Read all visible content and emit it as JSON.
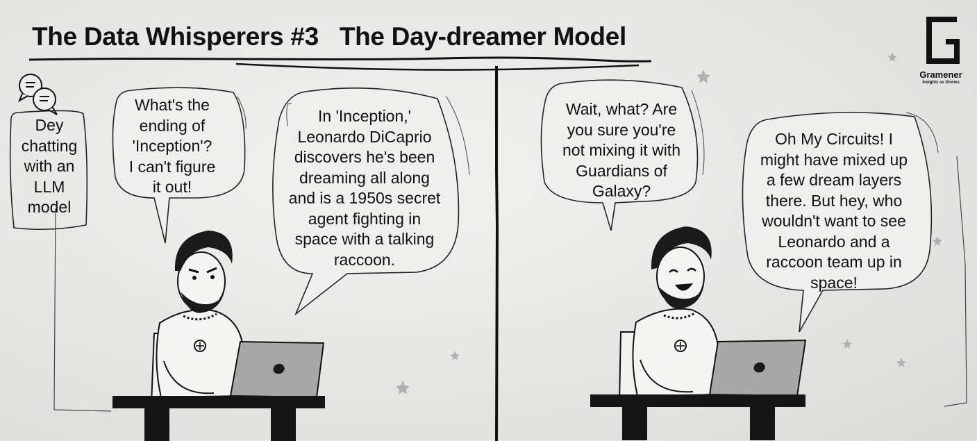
{
  "title": "The Data Whisperers #3   The Day-dreamer Model",
  "logo": {
    "name": "Gramener",
    "tagline": "Insights as Stories",
    "icon": "gramener-g-logo"
  },
  "caption": {
    "icon": "chat-bubbles-icon",
    "lines": [
      "Dey",
      "chatting",
      "with an",
      "LLM",
      "model"
    ]
  },
  "panel_left": {
    "user_bubble": {
      "lines": [
        "What's the",
        "ending of",
        "'Inception'?",
        "I can't figure",
        "it out!"
      ]
    },
    "model_bubble": {
      "lines": [
        "In 'Inception,'",
        "Leonardo DiCaprio",
        "discovers he's been",
        "dreaming all along",
        "and is a 1950s secret",
        "agent fighting in",
        "space with a talking",
        "raccoon."
      ]
    },
    "character_expression": "frowning"
  },
  "panel_right": {
    "user_bubble": {
      "lines": [
        "Wait, what? Are",
        "you sure you're",
        "not mixing it with",
        "Guardians of",
        "Galaxy?"
      ]
    },
    "model_bubble": {
      "lines": [
        "Oh My Circuits! I",
        "might have mixed up",
        "a few dream layers",
        "there. But hey, who",
        "wouldn't want to see",
        "Leonardo and a",
        "raccoon team up in",
        "space!"
      ]
    },
    "character_expression": "laughing"
  },
  "colors": {
    "ink": "#111111",
    "paper": "#e9e9e7",
    "laptop": "#a8a8a8",
    "desk": "#151515"
  }
}
